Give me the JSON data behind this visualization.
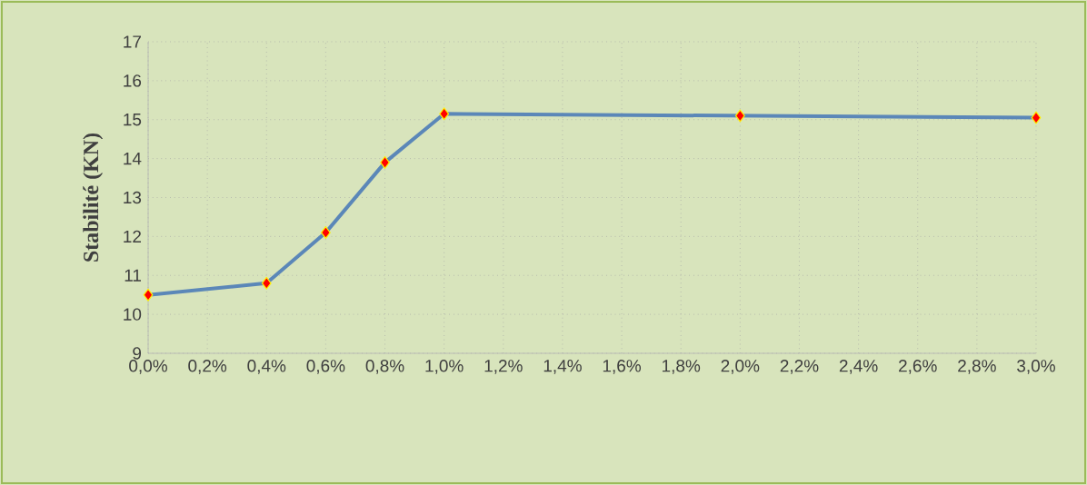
{
  "chart_data": {
    "type": "line",
    "ylabel": "Stabilité (KN)",
    "x": [
      0,
      0.4,
      0.6,
      0.8,
      1.0,
      2.0,
      3.0
    ],
    "series": [
      {
        "color": "#5b87b8",
        "values": [
          10.5,
          10.8,
          12.1,
          13.9,
          15.15,
          15.1,
          15.05
        ]
      }
    ],
    "xlim": [
      0,
      3
    ],
    "xticks": [
      {
        "value": 0,
        "label": "0,0%"
      },
      {
        "value": 0.2,
        "label": "0,2%"
      },
      {
        "value": 0.4,
        "label": "0,4%"
      },
      {
        "value": 0.6,
        "label": "0,6%"
      },
      {
        "value": 0.8,
        "label": "0,8%"
      },
      {
        "value": 1.0,
        "label": "1,0%"
      },
      {
        "value": 1.2,
        "label": "1,2%"
      },
      {
        "value": 1.4,
        "label": "1,4%"
      },
      {
        "value": 1.6,
        "label": "1,6%"
      },
      {
        "value": 1.8,
        "label": "1,8%"
      },
      {
        "value": 2.0,
        "label": "2,0%"
      },
      {
        "value": 2.2,
        "label": "2,2%"
      },
      {
        "value": 2.4,
        "label": "2,4%"
      },
      {
        "value": 2.6,
        "label": "2,6%"
      },
      {
        "value": 2.8,
        "label": "2,8%"
      },
      {
        "value": 3.0,
        "label": "3,0%"
      }
    ],
    "ylim": [
      9,
      17
    ],
    "yticks": [
      9,
      10,
      11,
      12,
      13,
      14,
      15,
      16,
      17
    ],
    "grid": true,
    "marker": "diamond",
    "line_style": "solid"
  }
}
